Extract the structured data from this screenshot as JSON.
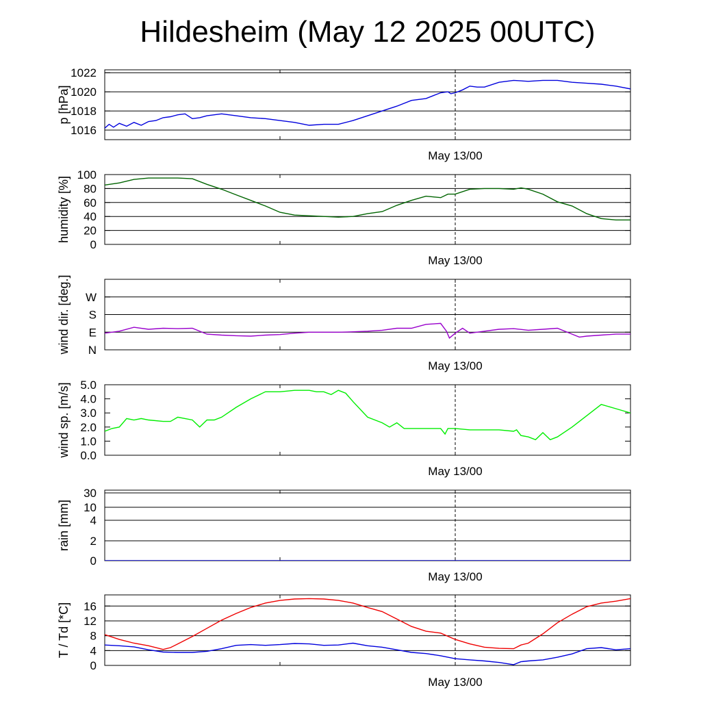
{
  "page": {
    "title": "Hildesheim (May 12 2025 00UTC)"
  },
  "chart_data": [
    {
      "type": "line",
      "ylabel": "p [hPa]",
      "xtick_label": "May 13/00",
      "x_range_hours": [
        -24,
        12
      ],
      "ylim": [
        1015,
        1022.3
      ],
      "yticks": [
        1016,
        1018,
        1020,
        1022
      ],
      "ytick_labels": [
        "1016",
        "1018",
        "1020",
        "1022"
      ],
      "hlines": [
        1016,
        1018,
        1020,
        1022
      ],
      "color": "#0000dd",
      "series": [
        {
          "x": [
            -24,
            -23.7,
            -23.4,
            -23,
            -22.5,
            -22,
            -21.5,
            -21,
            -20.5,
            -20,
            -19.5,
            -19,
            -18.5,
            -18,
            -17.5,
            -17,
            -16.5,
            -16,
            -15,
            -14,
            -13,
            -12,
            -11,
            -10,
            -9,
            -8,
            -7,
            -6,
            -5,
            -4,
            -3,
            -2,
            -1.5,
            -1,
            -0.5,
            -0.3,
            0,
            0.5,
            1,
            1.5,
            2,
            3,
            4,
            5,
            6,
            7,
            8,
            9,
            10,
            11,
            12
          ],
          "y": [
            1016.2,
            1016.6,
            1016.3,
            1016.7,
            1016.4,
            1016.8,
            1016.5,
            1016.9,
            1017.0,
            1017.3,
            1017.4,
            1017.6,
            1017.7,
            1017.2,
            1017.3,
            1017.5,
            1017.6,
            1017.7,
            1017.5,
            1017.3,
            1017.2,
            1017.0,
            1016.8,
            1016.5,
            1016.6,
            1016.6,
            1017.0,
            1017.5,
            1018.0,
            1018.5,
            1019.1,
            1019.3,
            1019.6,
            1019.9,
            1020.0,
            1019.8,
            1019.9,
            1020.2,
            1020.6,
            1020.5,
            1020.5,
            1021.0,
            1021.2,
            1021.1,
            1021.2,
            1021.2,
            1021.0,
            1020.9,
            1020.8,
            1020.6,
            1020.3
          ]
        }
      ]
    },
    {
      "type": "line",
      "ylabel": "humidity [%]",
      "xtick_label": "May 13/00",
      "x_range_hours": [
        -24,
        12
      ],
      "ylim": [
        0,
        100
      ],
      "yticks": [
        0,
        20,
        40,
        60,
        80,
        100
      ],
      "ytick_labels": [
        "0",
        "20",
        "40",
        "60",
        "80",
        "100"
      ],
      "hlines": [
        20,
        40,
        60,
        80
      ],
      "color": "#006400",
      "series": [
        {
          "x": [
            -24,
            -23,
            -22,
            -21,
            -20,
            -19,
            -18,
            -17,
            -16,
            -15,
            -14,
            -13,
            -12,
            -11,
            -10,
            -9,
            -8,
            -7,
            -6,
            -5,
            -4,
            -3,
            -2,
            -1,
            -0.5,
            0,
            1,
            2,
            3,
            4,
            4.5,
            5,
            6,
            7,
            8,
            9,
            10,
            11,
            12
          ],
          "y": [
            85,
            88,
            93,
            95,
            95,
            95,
            94,
            86,
            79,
            71,
            63,
            55,
            46,
            42,
            41,
            40,
            39,
            40,
            44,
            47,
            56,
            63,
            69,
            67,
            72,
            72,
            79,
            80,
            80,
            79,
            81,
            79,
            72,
            61,
            55,
            44,
            37,
            35,
            35
          ]
        }
      ]
    },
    {
      "type": "line",
      "ylabel": "wind dir. [deg.]",
      "xtick_label": "May 13/00",
      "x_range_hours": [
        -24,
        12
      ],
      "ylim": [
        0,
        360
      ],
      "yticks": [
        0,
        90,
        180,
        270
      ],
      "ytick_labels": [
        "N",
        "E",
        "S",
        "W"
      ],
      "hlines": [
        90,
        180,
        270
      ],
      "color": "#9900cc",
      "series": [
        {
          "x": [
            -24,
            -23,
            -22,
            -21,
            -20,
            -19,
            -18,
            -17,
            -16,
            -15,
            -14,
            -13,
            -12,
            -11,
            -10,
            -9,
            -8,
            -7,
            -6,
            -5,
            -4,
            -3,
            -2,
            -1,
            -0.6,
            -0.4,
            0,
            0.5,
            1,
            2,
            3,
            4,
            5,
            6,
            7,
            8,
            8.5,
            9,
            10,
            11,
            12
          ],
          "y": [
            85,
            95,
            115,
            105,
            110,
            108,
            110,
            80,
            75,
            72,
            70,
            75,
            78,
            85,
            90,
            90,
            90,
            92,
            95,
            100,
            110,
            110,
            130,
            135,
            95,
            60,
            85,
            110,
            85,
            95,
            105,
            108,
            100,
            105,
            110,
            80,
            65,
            70,
            75,
            80,
            80
          ]
        }
      ]
    },
    {
      "type": "line",
      "ylabel": "wind sp. [m/s]",
      "xtick_label": "May 13/00",
      "x_range_hours": [
        -24,
        12
      ],
      "ylim": [
        0,
        5
      ],
      "yticks": [
        0,
        1,
        2,
        3,
        4,
        5
      ],
      "ytick_labels": [
        "0.0",
        "1.0",
        "2.0",
        "3.0",
        "4.0",
        "5.0"
      ],
      "hlines": [],
      "color": "#00ee00",
      "series": [
        {
          "x": [
            -24,
            -23.5,
            -23,
            -22.5,
            -22,
            -21.5,
            -21,
            -20,
            -19.5,
            -19,
            -18.5,
            -18,
            -17.5,
            -17,
            -16.5,
            -16,
            -15,
            -14,
            -13,
            -12,
            -11,
            -10,
            -9.5,
            -9,
            -8.5,
            -8,
            -7.5,
            -7,
            -6,
            -5,
            -4.5,
            -4,
            -3.5,
            -3,
            -2,
            -1,
            -0.7,
            -0.5,
            0,
            1,
            2,
            3,
            4,
            4.2,
            4.5,
            5,
            5.5,
            6,
            6.5,
            7,
            8,
            9,
            10,
            11,
            12
          ],
          "y": [
            1.7,
            1.9,
            2.0,
            2.6,
            2.5,
            2.6,
            2.5,
            2.4,
            2.4,
            2.7,
            2.6,
            2.5,
            2.0,
            2.5,
            2.5,
            2.7,
            3.4,
            4.0,
            4.5,
            4.5,
            4.6,
            4.6,
            4.5,
            4.5,
            4.3,
            4.6,
            4.4,
            3.8,
            2.7,
            2.3,
            2.0,
            2.3,
            1.9,
            1.9,
            1.9,
            1.9,
            1.5,
            1.9,
            1.9,
            1.8,
            1.8,
            1.8,
            1.7,
            1.8,
            1.4,
            1.3,
            1.1,
            1.6,
            1.1,
            1.3,
            2.0,
            2.8,
            3.6,
            3.3,
            3.0
          ]
        }
      ]
    },
    {
      "type": "line",
      "ylabel": "rain [mm]",
      "xtick_label": "May 13/00",
      "x_range_hours": [
        -24,
        12
      ],
      "y_scale": "nonlinear",
      "ytick_labels": [
        "0",
        "2",
        "4",
        "10",
        "30"
      ],
      "hlines": [
        2,
        4,
        10,
        30
      ],
      "color": "#0000dd",
      "series": [
        {
          "x": [
            -24,
            12
          ],
          "y": [
            0,
            0
          ]
        }
      ]
    },
    {
      "type": "line",
      "ylabel": "T / Td [*C]",
      "xtick_label": "May 13/00",
      "x_range_hours": [
        -24,
        12
      ],
      "ylim": [
        0,
        19
      ],
      "yticks": [
        0,
        4,
        8,
        12,
        16
      ],
      "ytick_labels": [
        "0",
        "4",
        "8",
        "12",
        "16"
      ],
      "hlines": [
        4,
        8,
        12,
        16
      ],
      "color": "#ee0000",
      "series": [
        {
          "color": "#ee0000",
          "x": [
            -24,
            -23,
            -22,
            -21,
            -20,
            -19.5,
            -19,
            -18,
            -17,
            -16,
            -15,
            -14,
            -13,
            -12,
            -11,
            -10,
            -9,
            -8,
            -7,
            -6,
            -5,
            -4,
            -3,
            -2,
            -1,
            0,
            1,
            2,
            3,
            4,
            4.5,
            5,
            6,
            7,
            8,
            9,
            10,
            11,
            12
          ],
          "y": [
            8.3,
            7.0,
            6.0,
            5.3,
            4.3,
            4.8,
            5.8,
            7.8,
            10.0,
            12.2,
            14.0,
            15.6,
            16.8,
            17.5,
            17.9,
            18.0,
            17.9,
            17.5,
            16.8,
            15.6,
            14.5,
            12.5,
            10.5,
            9.2,
            8.7,
            7.0,
            5.8,
            4.9,
            4.6,
            4.5,
            5.5,
            6.0,
            8.5,
            11.5,
            13.8,
            15.8,
            16.8,
            17.3,
            18.0
          ]
        },
        {
          "color": "#0000dd",
          "x": [
            -24,
            -23,
            -22,
            -21,
            -20,
            -19,
            -18,
            -17,
            -16,
            -15,
            -14,
            -13,
            -12,
            -11,
            -10,
            -9,
            -8,
            -7,
            -6,
            -5,
            -4,
            -3,
            -2,
            -1,
            0,
            1,
            2,
            3,
            4,
            4.5,
            5,
            6,
            7,
            8,
            9,
            10,
            11,
            12
          ],
          "y": [
            5.5,
            5.3,
            5.0,
            4.2,
            3.6,
            3.5,
            3.5,
            3.8,
            4.5,
            5.4,
            5.6,
            5.4,
            5.6,
            5.9,
            5.8,
            5.4,
            5.5,
            6.0,
            5.3,
            4.9,
            4.2,
            3.5,
            3.2,
            2.6,
            1.8,
            1.5,
            1.2,
            0.8,
            0.2,
            1.0,
            1.2,
            1.5,
            2.2,
            3.1,
            4.5,
            4.8,
            4.2,
            4.5
          ]
        }
      ]
    }
  ]
}
